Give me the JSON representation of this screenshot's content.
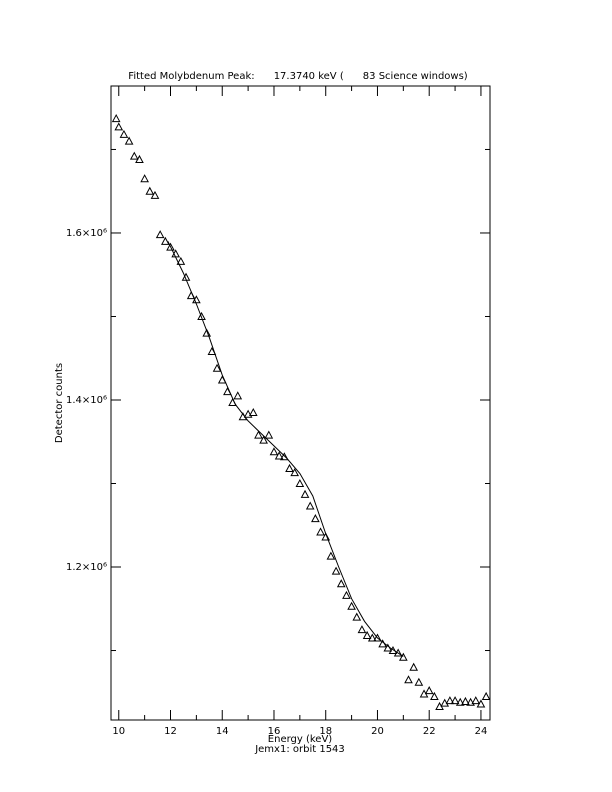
{
  "chart_data": {
    "type": "scatter",
    "title": "Fitted Molybdenum Peak:      17.3740 keV (      83 Science windows)",
    "x_label": "Energy (keV)",
    "y_label": "Detector counts",
    "subtitle": "Jemx1: orbit 1543",
    "xlim": [
      9.7,
      24.35
    ],
    "ylim": [
      1016800,
      1776000
    ],
    "xticks": [
      10,
      12,
      14,
      16,
      18,
      20,
      22,
      24
    ],
    "xminor": [
      11,
      13,
      15,
      17,
      19,
      21,
      23
    ],
    "yticks": [
      {
        "value": 1200000,
        "label": "1.2×10⁶"
      },
      {
        "value": 1400000,
        "label": "1.4×10⁶"
      },
      {
        "value": 1600000,
        "label": "1.6×10⁶"
      }
    ],
    "yminor": [
      1100000,
      1300000,
      1500000,
      1700000
    ],
    "color": "#000000",
    "series": [
      {
        "marker": "triangle",
        "x": [
          9.9,
          10.0,
          10.2,
          10.4,
          10.6,
          10.8,
          11.0,
          11.2,
          11.4,
          11.6,
          11.8,
          12.0,
          12.2,
          12.4,
          12.6,
          12.8,
          13.0,
          13.2,
          13.4,
          13.6,
          13.8,
          14.0,
          14.2,
          14.4,
          14.6,
          14.8,
          15.0,
          15.2,
          15.4,
          15.6,
          15.8,
          16.0,
          16.2,
          16.4,
          16.6,
          16.8,
          17.0,
          17.2,
          17.4,
          17.6,
          17.8,
          18.0,
          18.2,
          18.4,
          18.6,
          18.8,
          19.0,
          19.2,
          19.4,
          19.6,
          19.8,
          20.0,
          20.2,
          20.4,
          20.6,
          20.8,
          21.0,
          21.2,
          21.4,
          21.6,
          21.8,
          22.0,
          22.2,
          22.4,
          22.6,
          22.8,
          23.0,
          23.2,
          23.4,
          23.6,
          23.8,
          24.0,
          24.2
        ],
        "values": [
          1737000,
          1727000,
          1718000,
          1710000,
          1692000,
          1688000,
          1665000,
          1650000,
          1645000,
          1598000,
          1590000,
          1583000,
          1575000,
          1566000,
          1547000,
          1525000,
          1520000,
          1500000,
          1480000,
          1458000,
          1438000,
          1424000,
          1410000,
          1397000,
          1405000,
          1380000,
          1383000,
          1385000,
          1358000,
          1352000,
          1358000,
          1338000,
          1333000,
          1332000,
          1318000,
          1313000,
          1300000,
          1287000,
          1273000,
          1258000,
          1242000,
          1236000,
          1213000,
          1195000,
          1180000,
          1166000,
          1153000,
          1140000,
          1125000,
          1118000,
          1115000,
          1115000,
          1108000,
          1103000,
          1100000,
          1097000,
          1092000,
          1065000,
          1080000,
          1062000,
          1048000,
          1052000,
          1045000,
          1033000,
          1037000,
          1040000,
          1040000,
          1038000,
          1039000,
          1038000,
          1040000,
          1036000,
          1045000
        ]
      },
      {
        "marker": "line",
        "x": [
          11.9,
          12.5,
          13.0,
          13.5,
          14.0,
          14.5,
          15.0,
          15.5,
          16.0,
          16.5,
          17.0,
          17.5,
          18.0,
          18.5,
          19.0,
          19.5,
          20.0,
          20.5,
          21.0
        ],
        "values": [
          1590000,
          1552000,
          1515000,
          1475000,
          1430000,
          1395000,
          1375000,
          1360000,
          1345000,
          1330000,
          1312000,
          1285000,
          1240000,
          1200000,
          1162000,
          1135000,
          1115000,
          1103000,
          1093000
        ]
      }
    ]
  }
}
